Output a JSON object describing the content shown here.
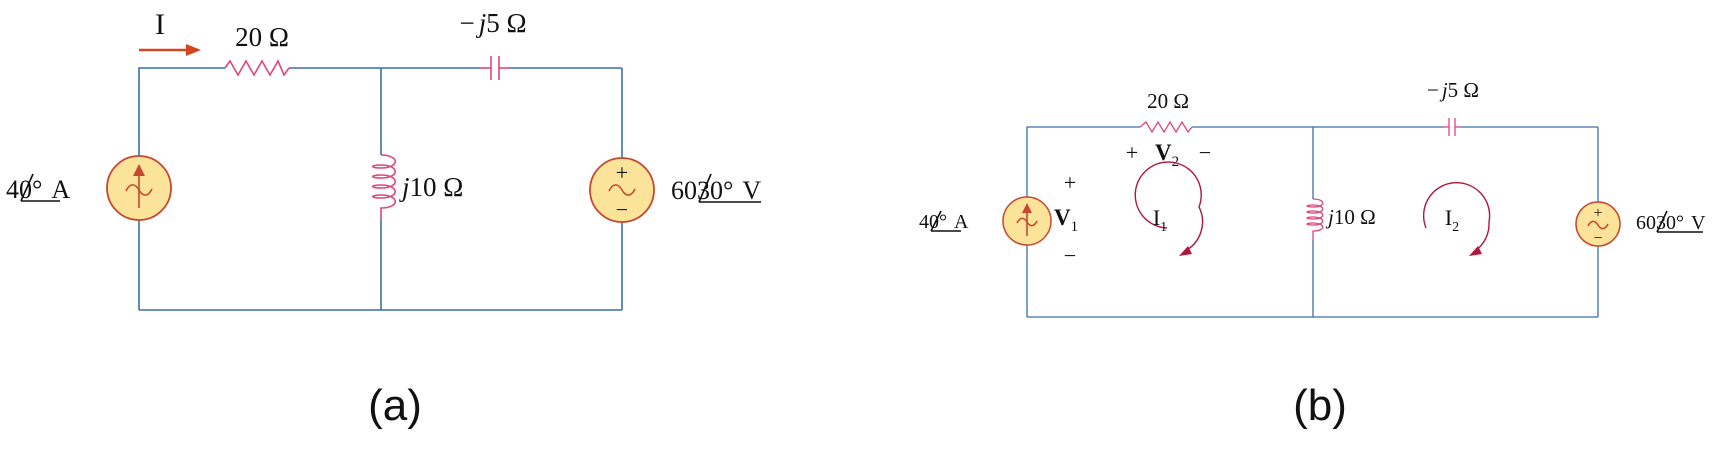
{
  "circuit_a": {
    "caption": "(a)",
    "current_label": "I",
    "resistor": "20 Ω",
    "capacitor_prefix": "−",
    "capacitor_j": "j",
    "capacitor_value": "5 Ω",
    "inductor_j": "j",
    "inductor_value": "10 Ω",
    "current_source_mag": "4",
    "current_source_angle": "0°",
    "current_source_unit": "A",
    "voltage_source_mag": "60",
    "voltage_source_angle": "30°",
    "voltage_source_unit": "V",
    "vsource_plus": "+",
    "vsource_minus": "−"
  },
  "circuit_b": {
    "caption": "(b)",
    "resistor": "20 Ω",
    "capacitor_prefix": "−",
    "capacitor_j": "j",
    "capacitor_value": "5 Ω",
    "inductor_j": "j",
    "inductor_value": "10 Ω",
    "current_source_mag": "4",
    "current_source_angle": "0°",
    "current_source_unit": "A",
    "voltage_source_mag": "60",
    "voltage_source_angle": "30°",
    "voltage_source_unit": "V",
    "v2_plus": "+",
    "v2_letter": "V",
    "v2_sub": "2",
    "v2_minus": "−",
    "v1_plus": "+",
    "v1_letter": "V",
    "v1_sub": "1",
    "v1_minus": "−",
    "loop1_letter": "I",
    "loop1_sub": "1",
    "loop2_letter": "I",
    "loop2_sub": "2",
    "vsource_plus": "+",
    "vsource_minus": "−"
  },
  "colors": {
    "wire": "#3a6fa8",
    "component": "#e0457b",
    "source_fill": "#fbe39a",
    "source_stroke": "#c8472f",
    "arrow": "#d2451e",
    "loop_arrow": "#b0173a"
  }
}
